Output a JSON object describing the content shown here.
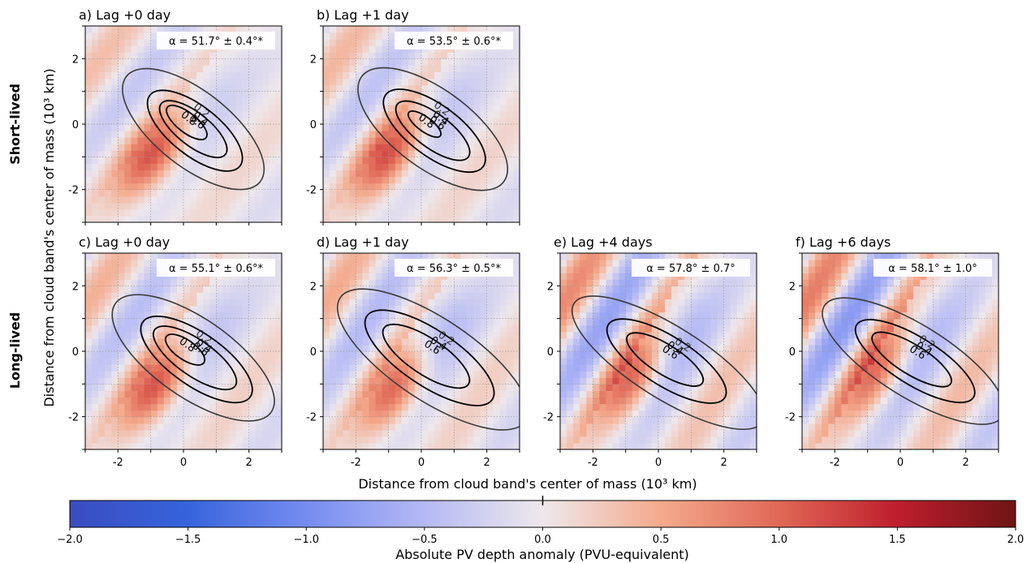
{
  "figure": {
    "xlabel": "Distance from cloud band's center of mass (10³ km)",
    "ylabel": "Distance from cloud band's center of mass (10³ km)",
    "row_labels": [
      "Short-lived",
      "Long-lived"
    ]
  },
  "chart_data": {
    "type": "heatmap",
    "xlim": [
      -3,
      3
    ],
    "ylim": [
      -3,
      3
    ],
    "xticks": [
      -2,
      0,
      2
    ],
    "yticks": [
      -2,
      0,
      2
    ],
    "grid": true,
    "contour_levels": [
      0.2,
      0.4,
      0.6,
      0.8
    ],
    "panels": [
      {
        "title": "a) Lag +0 day",
        "alpha": "α = 51.7° ± 0.4°*",
        "row": 0,
        "col": 0,
        "angle_deg": 51.7,
        "contours": [
          {
            "level": 0.2,
            "a": 2.6,
            "b": 1.15,
            "cx": 0.3,
            "cy": -0.15
          },
          {
            "level": 0.4,
            "a": 1.75,
            "b": 0.75,
            "cx": 0.35,
            "cy": -0.2
          },
          {
            "level": 0.6,
            "a": 1.25,
            "b": 0.5,
            "cx": 0.3,
            "cy": -0.15
          },
          {
            "level": 0.8,
            "a": 0.75,
            "b": 0.3,
            "cx": 0.1,
            "cy": 0.05
          }
        ],
        "field": {
          "neg_amp": 0.45,
          "pos_amp": 1.35,
          "pos_cx": -0.85,
          "pos_cy": -0.85,
          "bands": 0.35
        }
      },
      {
        "title": "b) Lag +1 day",
        "alpha": "α = 53.5° ± 0.6°*",
        "row": 0,
        "col": 1,
        "angle_deg": 53.5,
        "contours": [
          {
            "level": 0.2,
            "a": 2.7,
            "b": 1.2,
            "cx": 0.35,
            "cy": -0.15
          },
          {
            "level": 0.4,
            "a": 1.85,
            "b": 0.78,
            "cx": 0.4,
            "cy": -0.2
          },
          {
            "level": 0.6,
            "a": 1.35,
            "b": 0.52,
            "cx": 0.35,
            "cy": -0.2
          },
          {
            "level": 0.8,
            "a": 0.6,
            "b": 0.22,
            "cx": 0.1,
            "cy": 0.0
          }
        ],
        "field": {
          "neg_amp": 0.55,
          "pos_amp": 1.4,
          "pos_cx": -0.9,
          "pos_cy": -0.85,
          "bands": 0.4
        }
      },
      {
        "title": "c) Lag +0 day",
        "alpha": "α = 55.1° ± 0.6°*",
        "row": 1,
        "col": 0,
        "angle_deg": 55.1,
        "contours": [
          {
            "level": 0.2,
            "a": 2.9,
            "b": 1.2,
            "cx": 0.3,
            "cy": -0.2
          },
          {
            "level": 0.4,
            "a": 2.0,
            "b": 0.8,
            "cx": 0.4,
            "cy": -0.25
          },
          {
            "level": 0.6,
            "a": 1.5,
            "b": 0.55,
            "cx": 0.35,
            "cy": -0.2
          },
          {
            "level": 0.8,
            "a": 0.7,
            "b": 0.3,
            "cx": 0.05,
            "cy": 0.05
          }
        ],
        "field": {
          "neg_amp": 0.6,
          "pos_amp": 1.45,
          "pos_cx": -0.75,
          "pos_cy": -0.95,
          "bands": 0.45
        }
      },
      {
        "title": "d) Lag +1 day",
        "alpha": "α = 56.3° ± 0.5°*",
        "row": 1,
        "col": 1,
        "angle_deg": 56.3,
        "contours": [
          {
            "level": 0.2,
            "a": 3.4,
            "b": 1.25,
            "cx": 0.35,
            "cy": -0.25
          },
          {
            "level": 0.4,
            "a": 2.3,
            "b": 0.85,
            "cx": 0.25,
            "cy": -0.2
          },
          {
            "level": 0.6,
            "a": 1.55,
            "b": 0.55,
            "cx": 0.15,
            "cy": -0.15
          }
        ],
        "field": {
          "neg_amp": 0.75,
          "pos_amp": 1.4,
          "pos_cx": -0.7,
          "pos_cy": -1.0,
          "bands": 0.5
        }
      },
      {
        "title": "e) Lag +4 days",
        "alpha": "α = 57.8° ± 0.7°",
        "row": 1,
        "col": 2,
        "angle_deg": 57.8,
        "contours": [
          {
            "level": 0.2,
            "a": 3.4,
            "b": 1.1,
            "cx": 0.3,
            "cy": -0.35
          },
          {
            "level": 0.4,
            "a": 2.1,
            "b": 0.75,
            "cx": 0.25,
            "cy": -0.3
          },
          {
            "level": 0.6,
            "a": 1.35,
            "b": 0.45,
            "cx": 0.2,
            "cy": -0.25
          }
        ],
        "field": {
          "neg_amp": 0.65,
          "pos_amp": 1.2,
          "pos_cx": -0.7,
          "pos_cy": -0.75,
          "bands": 0.75
        }
      },
      {
        "title": "f) Lag +6 days",
        "alpha": "α = 58.1° ± 1.0°",
        "row": 1,
        "col": 3,
        "angle_deg": 58.1,
        "contours": [
          {
            "level": 0.2,
            "a": 3.2,
            "b": 1.1,
            "cx": 0.4,
            "cy": -0.3
          },
          {
            "level": 0.4,
            "a": 2.1,
            "b": 0.72,
            "cx": 0.45,
            "cy": -0.3
          },
          {
            "level": 0.6,
            "a": 1.4,
            "b": 0.45,
            "cx": 0.35,
            "cy": -0.25
          }
        ],
        "field": {
          "neg_amp": 0.5,
          "pos_amp": 1.0,
          "pos_cx": -0.65,
          "pos_cy": -0.6,
          "bands": 0.85
        }
      }
    ],
    "colorbar": {
      "label": "Absolute PV depth anomaly (PVU-equivalent)",
      "min": -2.0,
      "max": 2.0,
      "ticks": [
        "−2.0",
        "−1.5",
        "−1.0",
        "−0.5",
        "0.0",
        "0.5",
        "1.0",
        "1.5",
        "2.0"
      ],
      "colormap": "coolwarm"
    }
  }
}
